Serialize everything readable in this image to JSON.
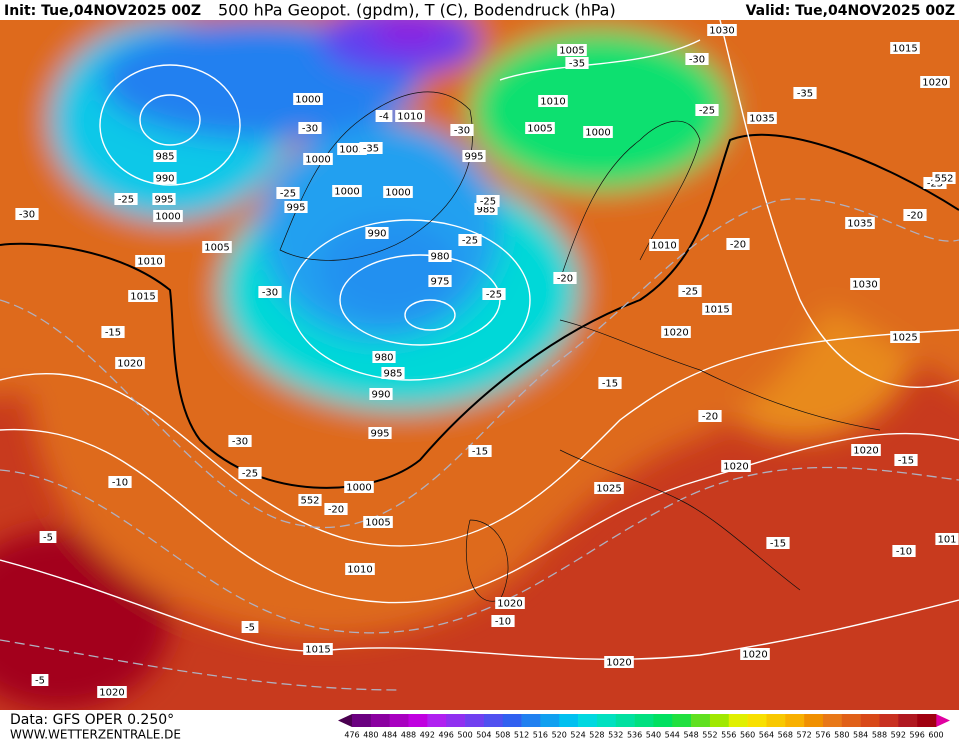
{
  "header": {
    "init": "Init: Tue,04NOV2025 00Z",
    "title": "500 hPa Geopot. (gpdm), T (C), Bodendruck (hPa)",
    "valid": "Valid: Tue,04NOV2025 00Z"
  },
  "map": {
    "pressure_labels": [
      "1030",
      "1015",
      "1020",
      "1005",
      "1010",
      "1005",
      "1000",
      "1000",
      "1010",
      "1005",
      "1000",
      "985",
      "990",
      "995",
      "1000",
      "1005",
      "1010",
      "1015",
      "1000",
      "1000",
      "995",
      "985",
      "990",
      "980",
      "975",
      "995",
      "1035",
      "1010",
      "1035",
      "1030",
      "1015",
      "1020",
      "1025",
      "1020",
      "980",
      "985",
      "990",
      "995",
      "1000",
      "1005",
      "1010",
      "1020",
      "1020",
      "1025",
      "1020",
      "1015",
      "1020",
      "1020",
      "1020",
      "101"
    ],
    "temperature_labels": [
      "-35",
      "-30",
      "-35",
      "-25",
      "-30",
      "-4",
      "-35",
      "-30",
      "-25",
      "-30",
      "-25",
      "-25",
      "-25",
      "-25",
      "-20",
      "-30",
      "-25",
      "-20",
      "-20",
      "-25",
      "-15",
      "-15",
      "-20",
      "-15",
      "-30",
      "-25",
      "-20",
      "-10",
      "-5",
      "-15",
      "-10",
      "-15",
      "-10",
      "-5",
      "-5"
    ],
    "geopotential_labels": [
      "552",
      "552"
    ]
  },
  "footer": {
    "source": "Data: GFS OPER 0.250°",
    "site": "WWW.WETTERZENTRALE.DE"
  },
  "colorbar": {
    "ticks": [
      476,
      480,
      484,
      488,
      492,
      496,
      500,
      504,
      508,
      512,
      516,
      520,
      524,
      528,
      532,
      536,
      540,
      544,
      548,
      552,
      556,
      560,
      564,
      568,
      572,
      576,
      580,
      584,
      588,
      592,
      596,
      600
    ],
    "colors": [
      "#4a0050",
      "#6a0080",
      "#8a00a0",
      "#a800c0",
      "#c000e0",
      "#b020f0",
      "#9030f0",
      "#7040f0",
      "#5050f0",
      "#3060f0",
      "#2080f0",
      "#10a0f0",
      "#00c0f0",
      "#00d8e0",
      "#00e0c0",
      "#00e0a0",
      "#00e080",
      "#00e060",
      "#20e040",
      "#60e020",
      "#a0e800",
      "#e0f000",
      "#f8e000",
      "#f8c800",
      "#f8b000",
      "#f09000",
      "#e87818",
      "#e06018",
      "#d84818",
      "#c83020",
      "#b01820",
      "#a00010",
      "#e000a0"
    ]
  }
}
